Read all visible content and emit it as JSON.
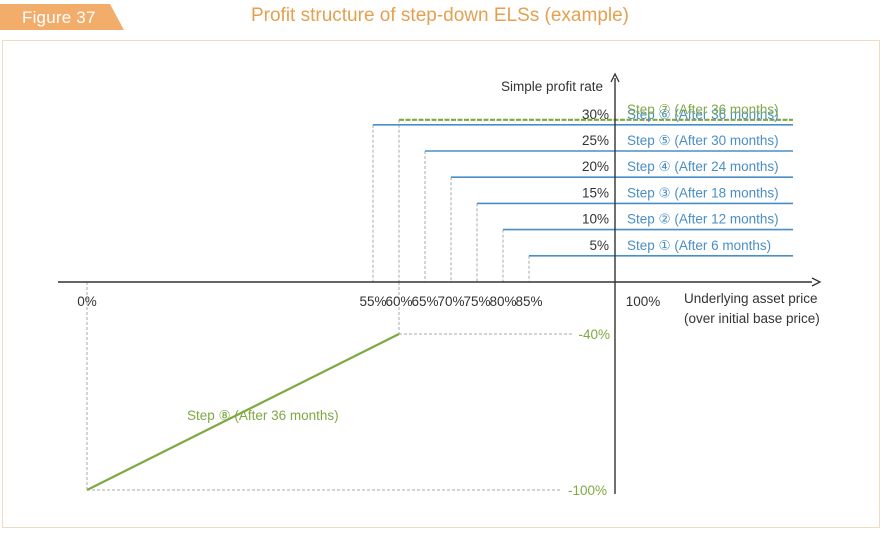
{
  "figure": {
    "label": "Figure 37",
    "title": "Profit structure of step-down ELSs (example)"
  },
  "colors": {
    "accent": "#f2ad6b",
    "title": "#e5a04f",
    "step_blue": "#4a8ec6",
    "step_green": "#7fa843",
    "axis": "#333333",
    "guide": "#aaaaaa",
    "frame": "#f0dcc0"
  },
  "chart_data": {
    "type": "line",
    "title": "Profit structure of step-down ELSs (example)",
    "ylabel": "Simple profit rate",
    "xlabel": "Underlying asset price (over initial base price)",
    "xlabel_lines": [
      "Underlying asset price",
      "(over initial base price)"
    ],
    "x_ticks": [
      "0%",
      "55%",
      "60%",
      "65%",
      "70%",
      "75%",
      "80%",
      "85%",
      "100%"
    ],
    "steps": [
      {
        "name": "Step ① (After 6 months)",
        "trigger": 85,
        "rate": 5,
        "rate_label": "5%",
        "color": "blue"
      },
      {
        "name": "Step ② (After 12 months)",
        "trigger": 80,
        "rate": 10,
        "rate_label": "10%",
        "color": "blue"
      },
      {
        "name": "Step ③ (After 18 months)",
        "trigger": 75,
        "rate": 15,
        "rate_label": "15%",
        "color": "blue"
      },
      {
        "name": "Step ④ (After 24 months)",
        "trigger": 70,
        "rate": 20,
        "rate_label": "20%",
        "color": "blue"
      },
      {
        "name": "Step ⑤ (After 30 months)",
        "trigger": 65,
        "rate": 25,
        "rate_label": "25%",
        "color": "blue"
      },
      {
        "name": "Step ⑥ (After 36 months)",
        "trigger": 55,
        "rate": 30,
        "rate_label": "30%",
        "color": "blue"
      },
      {
        "name": "Step ⑦ (After 36 months)",
        "trigger": 60,
        "rate": 30,
        "rate_label": "",
        "color": "green",
        "dashed": true
      }
    ],
    "loss_step": {
      "name": "Step ⑧ (After 36 months)",
      "points": [
        {
          "x": 0,
          "y": -100
        },
        {
          "x": 60,
          "y": -40
        }
      ],
      "y_labels": [
        "-40%",
        "-100%"
      ]
    },
    "y_values_shown": [
      5,
      10,
      15,
      20,
      25,
      30,
      -40,
      -100
    ],
    "grid": false,
    "legend": "inline labels"
  }
}
